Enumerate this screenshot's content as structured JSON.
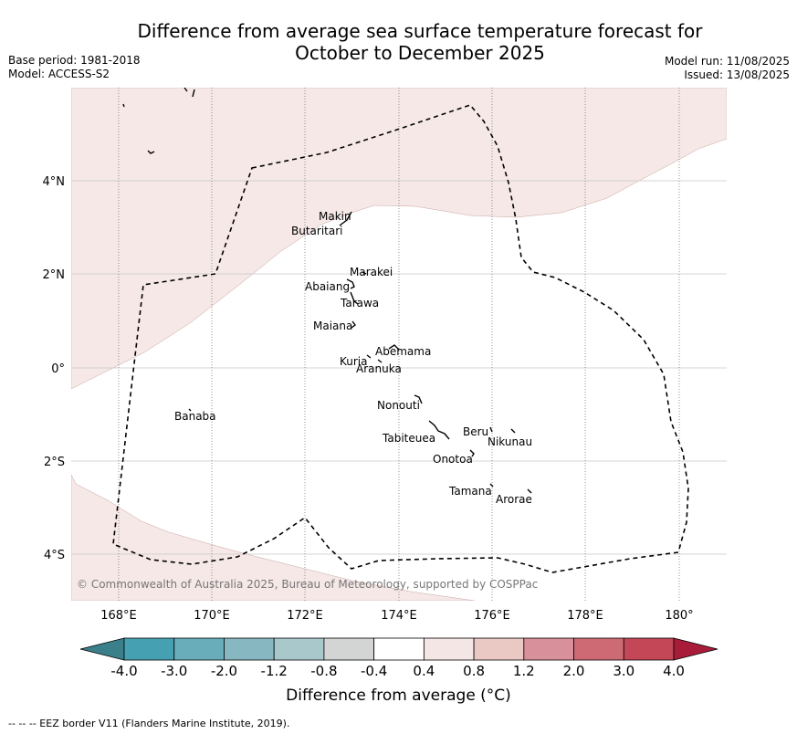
{
  "title_line1": "Difference from average sea surface temperature forecast for",
  "title_line2": "October to December 2025",
  "meta_left": {
    "base_period": "Base period: 1981-2018",
    "model": "Model: ACCESS-S2"
  },
  "meta_right": {
    "model_run": "Model run: 11/08/2025",
    "issued": "Issued: 13/08/2025"
  },
  "lon_labels": [
    "168°E",
    "170°E",
    "172°E",
    "174°E",
    "176°E",
    "178°E",
    "180°"
  ],
  "lat_labels": [
    "4°N",
    "2°N",
    "0°",
    "2°S",
    "4°S"
  ],
  "islands": [
    "Makin",
    "Butaritari",
    "Marakei",
    "Abaiang",
    "Tarawa",
    "Maiana",
    "Abemama",
    "Kuria",
    "Aranuka",
    "Nonouti",
    "Tabiteuea",
    "Beru",
    "Nikunau",
    "Onotoa",
    "Tamana",
    "Arorae",
    "Banaba"
  ],
  "copyright": "© Commonwealth of Australia 2025, Bureau of Meteorology, supported by COSPPac",
  "colorbar": {
    "ticks": [
      "-4.0",
      "-3.0",
      "-2.0",
      "-1.2",
      "-0.8",
      "-0.4",
      "0.4",
      "0.8",
      "1.2",
      "2.0",
      "3.0",
      "4.0"
    ],
    "colors": [
      "#3a7f8a",
      "#45a1b2",
      "#68adb9",
      "#87b8c2",
      "#a9c8cc",
      "#d3d5d5",
      "#ffffff",
      "#f4e6e4",
      "#eac8c4",
      "#d8909a",
      "#ce6a74",
      "#c34757",
      "#a81c3a"
    ],
    "label": "Difference from average (°C)"
  },
  "footer": "--  --  -- EEZ border V11 (Flanders Marine Institute, 2019)."
}
